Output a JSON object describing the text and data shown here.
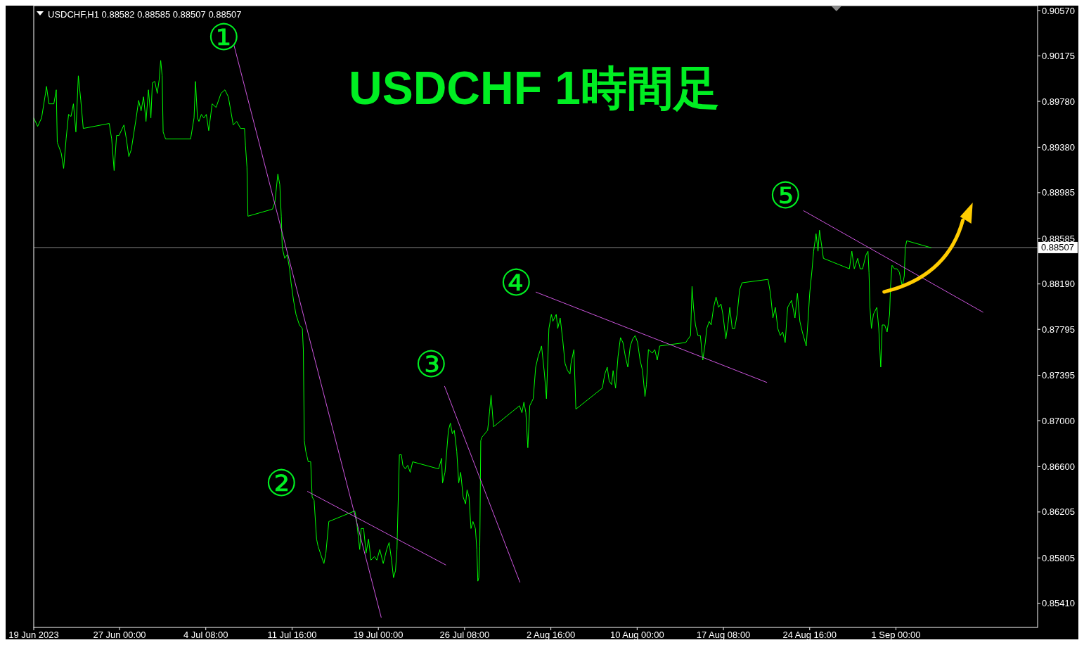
{
  "chart_data": {
    "type": "line",
    "title": "USDCHF 1時間足",
    "annotations": [
      "USDCHF,H1  0.88582 0.88585 0.88507 0.88507",
      "①",
      "②",
      "③",
      "④",
      "⑤"
    ],
    "xlim": [
      "2023-06-19T17:00",
      "2023-09-13T01:00"
    ],
    "ylim": [
      0.852,
      0.90613
    ],
    "xticks": [
      {
        "value": "2023-06-19T17:00",
        "label": "19 Jun 2023"
      },
      {
        "value": "2023-06-27T00:00",
        "label": "27 Jun 00:00"
      },
      {
        "value": "2023-07-04T08:00",
        "label": "4 Jul 08:00"
      },
      {
        "value": "2023-07-11T16:00",
        "label": "11 Jul 16:00"
      },
      {
        "value": "2023-07-19T00:00",
        "label": "19 Jul 00:00"
      },
      {
        "value": "2023-07-26T08:00",
        "label": "26 Jul 08:00"
      },
      {
        "value": "2023-08-02T16:00",
        "label": "2 Aug 16:00"
      },
      {
        "value": "2023-08-10T00:00",
        "label": "10 Aug 00:00"
      },
      {
        "value": "2023-08-17T08:00",
        "label": "17 Aug 08:00"
      },
      {
        "value": "2023-08-24T16:00",
        "label": "24 Aug 16:00"
      },
      {
        "value": "2023-09-01T00:00",
        "label": "1 Sep 00:00"
      }
    ],
    "yticks": [
      {
        "value": 0.8541,
        "label": "0.85410"
      },
      {
        "value": 0.85805,
        "label": "0.85805"
      },
      {
        "value": 0.86205,
        "label": "0.86205"
      },
      {
        "value": 0.866,
        "label": "0.86600"
      },
      {
        "value": 0.87,
        "label": "0.87000"
      },
      {
        "value": 0.87395,
        "label": "0.87395"
      },
      {
        "value": 0.87795,
        "label": "0.87795"
      },
      {
        "value": 0.8819,
        "label": "0.88190"
      },
      {
        "value": 0.88585,
        "label": "0.88585"
      },
      {
        "value": 0.88985,
        "label": "0.88985"
      },
      {
        "value": 0.8938,
        "label": "0.89380"
      },
      {
        "value": 0.8978,
        "label": "0.89780"
      },
      {
        "value": 0.90175,
        "label": "0.90175"
      },
      {
        "value": 0.9057,
        "label": "0.90570"
      }
    ],
    "ref_lines": [
      {
        "axis": "y",
        "value": 0.88507,
        "label": "0.88507",
        "color": "#808080"
      }
    ],
    "series": [
      {
        "color": "#00ff00",
        "x": [
          "2023-06-19T17:00",
          "2023-06-20T01:00",
          "2023-06-20T09:00",
          "2023-06-20T17:00",
          "2023-06-20T19:00",
          "2023-06-21T00:00",
          "2023-06-21T10:00",
          "2023-06-21T15:00",
          "2023-06-21T17:00",
          "2023-06-22T01:00",
          "2023-06-22T06:00",
          "2023-06-22T11:00",
          "2023-06-22T16:00",
          "2023-06-22T21:00",
          "2023-06-23T02:00",
          "2023-06-23T07:00",
          "2023-06-23T12:00",
          "2023-06-23T17:00",
          "2023-06-23T22:00",
          "2023-06-26T03:00",
          "2023-06-26T08:00",
          "2023-06-26T13:00",
          "2023-06-26T18:00",
          "2023-06-26T23:00",
          "2023-06-27T09:00",
          "2023-06-27T14:00",
          "2023-06-27T19:00",
          "2023-06-28T00:00",
          "2023-06-28T10:00",
          "2023-06-28T15:00",
          "2023-06-28T20:00",
          "2023-06-29T01:00",
          "2023-06-29T06:00",
          "2023-06-29T11:00",
          "2023-06-29T16:00",
          "2023-06-29T19:00",
          "2023-06-30T00:00",
          "2023-06-30T05:00",
          "2023-06-30T09:00",
          "2023-06-30T12:00",
          "2023-06-30T15:00",
          "2023-06-30T17:00",
          "2023-06-30T22:00",
          "2023-07-03T01:00",
          "2023-07-03T08:00",
          "2023-07-03T11:00",
          "2023-07-03T15:00",
          "2023-07-03T18:00",
          "2023-07-03T23:00",
          "2023-07-04T04:00",
          "2023-07-04T09:00",
          "2023-07-04T14:00",
          "2023-07-04T21:00",
          "2023-07-05T05:00",
          "2023-07-05T15:00",
          "2023-07-05T23:00",
          "2023-07-06T06:00",
          "2023-07-06T11:00",
          "2023-07-06T16:00",
          "2023-07-06T23:00",
          "2023-07-07T07:00",
          "2023-07-07T15:00",
          "2023-07-07T17:00",
          "2023-07-07T20:00",
          "2023-07-07T22:00",
          "2023-07-10T00:00",
          "2023-07-10T05:00",
          "2023-07-10T11:00",
          "2023-07-10T15:00",
          "2023-07-10T18:00",
          "2023-07-10T20:00",
          "2023-07-11T01:00",
          "2023-07-11T06:00",
          "2023-07-11T11:00",
          "2023-07-11T14:00",
          "2023-07-11T19:00",
          "2023-07-12T00:00",
          "2023-07-12T07:00",
          "2023-07-12T13:00",
          "2023-07-12T15:00",
          "2023-07-12T17:00",
          "2023-07-12T20:00",
          "2023-07-13T01:00",
          "2023-07-13T06:00",
          "2023-07-13T09:00",
          "2023-07-13T13:00",
          "2023-07-13T18:00",
          "2023-07-13T21:00",
          "2023-07-14T04:00",
          "2023-07-14T09:00",
          "2023-07-14T13:00",
          "2023-07-14T19:00",
          "2023-07-17T00:00",
          "2023-07-17T03:00",
          "2023-07-17T10:00",
          "2023-07-17T13:00",
          "2023-07-17T18:00",
          "2023-07-17T23:00",
          "2023-07-18T04:00",
          "2023-07-18T09:00",
          "2023-07-18T16:00",
          "2023-07-18T21:00",
          "2023-07-19T03:00",
          "2023-07-19T10:00",
          "2023-07-19T17:00",
          "2023-07-19T22:00",
          "2023-07-20T03:00",
          "2023-07-20T07:00",
          "2023-07-20T11:00",
          "2023-07-20T14:00",
          "2023-07-20T16:00",
          "2023-07-20T19:00",
          "2023-07-20T23:00",
          "2023-07-21T02:00",
          "2023-07-21T07:00",
          "2023-07-21T12:00",
          "2023-07-21T17:00",
          "2023-07-21T22:00",
          "2023-07-24T03:00",
          "2023-07-24T09:00",
          "2023-07-24T11:00",
          "2023-07-24T16:00",
          "2023-07-24T23:00",
          "2023-07-25T03:00",
          "2023-07-25T07:00",
          "2023-07-25T11:00",
          "2023-07-25T16:00",
          "2023-07-25T20:00",
          "2023-07-26T00:00",
          "2023-07-26T05:00",
          "2023-07-26T10:00",
          "2023-07-26T13:00",
          "2023-07-26T17:00",
          "2023-07-26T21:00",
          "2023-07-27T01:00",
          "2023-07-27T06:00",
          "2023-07-27T09:00",
          "2023-07-27T11:00",
          "2023-07-27T13:00",
          "2023-07-27T15:00",
          "2023-07-27T17:00",
          "2023-07-27T19:00",
          "2023-07-27T23:00",
          "2023-07-28T07:00",
          "2023-07-28T11:00",
          "2023-07-28T14:00",
          "2023-07-28T19:00",
          "2023-07-31T00:00",
          "2023-07-31T05:00",
          "2023-07-31T09:00",
          "2023-07-31T13:00",
          "2023-07-31T17:00",
          "2023-07-31T21:00",
          "2023-08-01T04:00",
          "2023-08-01T09:00",
          "2023-08-01T14:00",
          "2023-08-01T21:00",
          "2023-08-02T03:00",
          "2023-08-02T07:00",
          "2023-08-02T12:00",
          "2023-08-02T17:00",
          "2023-08-02T20:00",
          "2023-08-03T03:00",
          "2023-08-03T06:00",
          "2023-08-03T11:00",
          "2023-08-03T16:00",
          "2023-08-03T21:00",
          "2023-08-04T02:00",
          "2023-08-04T07:00",
          "2023-08-04T09:00",
          "2023-08-04T15:00",
          "2023-08-04T19:00",
          "2023-08-07T01:00",
          "2023-08-07T06:00",
          "2023-08-07T11:00",
          "2023-08-07T15:00",
          "2023-08-07T20:00",
          "2023-08-07T23:00",
          "2023-08-08T04:00",
          "2023-08-08T09:00",
          "2023-08-08T14:00",
          "2023-08-08T19:00",
          "2023-08-09T00:00",
          "2023-08-09T05:00",
          "2023-08-09T10:00",
          "2023-08-09T15:00",
          "2023-08-09T20:00",
          "2023-08-10T01:00",
          "2023-08-10T06:00",
          "2023-08-10T11:00",
          "2023-08-10T16:00",
          "2023-08-10T19:00",
          "2023-08-10T23:00",
          "2023-08-11T07:00",
          "2023-08-11T12:00",
          "2023-08-11T17:00",
          "2023-08-11T22:00",
          "2023-08-14T03:00",
          "2023-08-14T08:00",
          "2023-08-14T13:00",
          "2023-08-14T16:00",
          "2023-08-14T19:00",
          "2023-08-14T23:00",
          "2023-08-15T04:00",
          "2023-08-15T09:00",
          "2023-08-15T14:00",
          "2023-08-15T19:00",
          "2023-08-15T22:00",
          "2023-08-16T03:00",
          "2023-08-16T07:00",
          "2023-08-16T12:00",
          "2023-08-16T17:00",
          "2023-08-16T22:00",
          "2023-08-17T03:00",
          "2023-08-17T07:00",
          "2023-08-17T13:00",
          "2023-08-17T18:00",
          "2023-08-17T21:00",
          "2023-08-18T02:00",
          "2023-08-18T07:00",
          "2023-08-18T12:00",
          "2023-08-18T17:00",
          "2023-08-18T22:00",
          "2023-08-21T03:00",
          "2023-08-21T08:00",
          "2023-08-21T13:00",
          "2023-08-21T18:00",
          "2023-08-21T23:00",
          "2023-08-22T04:00",
          "2023-08-22T09:00",
          "2023-08-22T14:00",
          "2023-08-22T19:00",
          "2023-08-23T03:00",
          "2023-08-23T10:00",
          "2023-08-23T15:00",
          "2023-08-23T20:00",
          "2023-08-24T01:00",
          "2023-08-24T09:00",
          "2023-08-24T13:00",
          "2023-08-24T16:00",
          "2023-08-24T21:00",
          "2023-08-25T00:00",
          "2023-08-25T05:00",
          "2023-08-25T09:00",
          "2023-08-25T12:00",
          "2023-08-25T15:00",
          "2023-08-25T20:00",
          "2023-08-28T01:00",
          "2023-08-28T06:00",
          "2023-08-28T11:00",
          "2023-08-28T18:00",
          "2023-08-28T23:00",
          "2023-08-29T04:00",
          "2023-08-29T11:00",
          "2023-08-29T15:00",
          "2023-08-29T17:00",
          "2023-08-29T19:00",
          "2023-08-29T22:00",
          "2023-08-30T02:00",
          "2023-08-30T09:00",
          "2023-08-30T13:00",
          "2023-08-30T17:00",
          "2023-08-30T20:00",
          "2023-08-31T01:00",
          "2023-08-31T06:00",
          "2023-08-31T11:00",
          "2023-08-31T13:00",
          "2023-08-31T16:00",
          "2023-08-31T21:00",
          "2023-09-01T02:00",
          "2023-09-01T07:00",
          "2023-09-01T10:00",
          "2023-09-01T13:00",
          "2023-09-01T17:00",
          "2023-09-01T19:00",
          "2023-09-01T22:00",
          "2023-09-04T00:00"
        ],
        "values": [
          0.89635,
          0.89562,
          0.89635,
          0.89849,
          0.8991,
          0.89758,
          0.89758,
          0.8988,
          0.89422,
          0.8933,
          0.89196,
          0.89452,
          0.89666,
          0.89648,
          0.89758,
          0.89513,
          0.90002,
          0.89788,
          0.89544,
          0.89587,
          0.89452,
          0.89177,
          0.89483,
          0.89483,
          0.89574,
          0.89452,
          0.89299,
          0.8936,
          0.89635,
          0.89788,
          0.89697,
          0.89819,
          0.89605,
          0.8988,
          0.89635,
          0.89941,
          0.89953,
          0.89849,
          0.89971,
          0.90136,
          0.90002,
          0.89513,
          0.89452,
          0.89452,
          0.89635,
          0.89953,
          0.89635,
          0.89605,
          0.89666,
          0.89635,
          0.89666,
          0.89525,
          0.89758,
          0.89727,
          0.89849,
          0.8988,
          0.89819,
          0.89697,
          0.89574,
          0.89605,
          0.89544,
          0.89544,
          0.89391,
          0.89208,
          0.8878,
          0.88841,
          0.88902,
          0.89147,
          0.89055,
          0.8878,
          0.88505,
          0.88413,
          0.88444,
          0.88322,
          0.882,
          0.88047,
          0.87925,
          0.87833,
          0.87802,
          0.87619,
          0.86825,
          0.86733,
          0.86642,
          0.86642,
          0.86336,
          0.86305,
          0.85969,
          0.85908,
          0.85817,
          0.85756,
          0.85847,
          0.86122,
          0.86214,
          0.86153,
          0.85878,
          0.86061,
          0.86061,
          0.85847,
          0.85969,
          0.85786,
          0.85817,
          0.85786,
          0.85878,
          0.85756,
          0.85878,
          0.85939,
          0.85786,
          0.85633,
          0.85694,
          0.85878,
          0.86214,
          0.86703,
          0.86703,
          0.86611,
          0.8658,
          0.86611,
          0.8655,
          0.86642,
          0.8658,
          0.86672,
          0.86458,
          0.8655,
          0.86916,
          0.86978,
          0.86886,
          0.86916,
          0.86733,
          0.86458,
          0.8655,
          0.86336,
          0.86275,
          0.86397,
          0.86336,
          0.86061,
          0.86122,
          0.86061,
          0.85878,
          0.85603,
          0.85633,
          0.85908,
          0.86825,
          0.86855,
          0.86874,
          0.86916,
          0.87081,
          0.87222,
          0.86947,
          0.8713,
          0.87069,
          0.87161,
          0.87069,
          0.86764,
          0.8713,
          0.87191,
          0.87466,
          0.87558,
          0.8765,
          0.87405,
          0.87191,
          0.87802,
          0.87925,
          0.87864,
          0.87925,
          0.87802,
          0.87894,
          0.87711,
          0.87497,
          0.87436,
          0.87405,
          0.87497,
          0.87619,
          0.871,
          0.87283,
          0.87405,
          0.87466,
          0.87344,
          0.87314,
          0.87436,
          0.87283,
          0.87558,
          0.87723,
          0.8768,
          0.87558,
          0.87466,
          0.8765,
          0.87711,
          0.87741,
          0.8768,
          0.87527,
          0.87436,
          0.8721,
          0.87314,
          0.87619,
          0.87588,
          0.87619,
          0.87527,
          0.8765,
          0.8768,
          0.87711,
          0.87741,
          0.88169,
          0.87986,
          0.87833,
          0.87741,
          0.87741,
          0.87527,
          0.8768,
          0.87802,
          0.87864,
          0.87833,
          0.87986,
          0.88077,
          0.87986,
          0.88016,
          0.87925,
          0.87711,
          0.87864,
          0.87986,
          0.87802,
          0.87802,
          0.87925,
          0.88138,
          0.882,
          0.8823,
          0.88108,
          0.87894,
          0.87986,
          0.87802,
          0.87741,
          0.87772,
          0.8768,
          0.87986,
          0.88047,
          0.87894,
          0.88108,
          0.87864,
          0.87772,
          0.8765,
          0.87894,
          0.88108,
          0.88322,
          0.88475,
          0.88627,
          0.88475,
          0.88658,
          0.88566,
          0.88413,
          0.88322,
          0.88475,
          0.88322,
          0.88413,
          0.88322,
          0.88322,
          0.88444,
          0.88475,
          0.88291,
          0.87986,
          0.87802,
          0.87925,
          0.87986,
          0.87802,
          0.87466,
          0.87833,
          0.87833,
          0.87772,
          0.87925,
          0.88169,
          0.88352,
          0.88322,
          0.88322,
          0.88291,
          0.8823,
          0.88169,
          0.88261,
          0.88505,
          0.88566,
          0.88505
        ]
      },
      {
        "type": "line",
        "color": "#cc55dd",
        "x": [
          "2023-07-06T17:00",
          "2023-07-19T06:00"
        ],
        "values": [
          0.90277,
          0.85285
        ]
      },
      {
        "type": "line",
        "color": "#cc55dd",
        "x": [
          "2023-07-12T23:00",
          "2023-07-24T18:00"
        ],
        "values": [
          0.86385,
          0.85743
        ]
      },
      {
        "type": "line",
        "color": "#cc55dd",
        "x": [
          "2023-07-24T15:00",
          "2023-07-31T01:00"
        ],
        "values": [
          0.87301,
          0.85591
        ]
      },
      {
        "type": "line",
        "color": "#cc55dd",
        "x": [
          "2023-08-01T09:00",
          "2023-08-21T01:00"
        ],
        "values": [
          0.8812,
          0.87332
        ]
      },
      {
        "type": "line",
        "color": "#cc55dd",
        "x": [
          "2023-08-24T03:00",
          "2023-09-08T10:00"
        ],
        "values": [
          0.88829,
          0.87943
        ]
      }
    ]
  }
}
